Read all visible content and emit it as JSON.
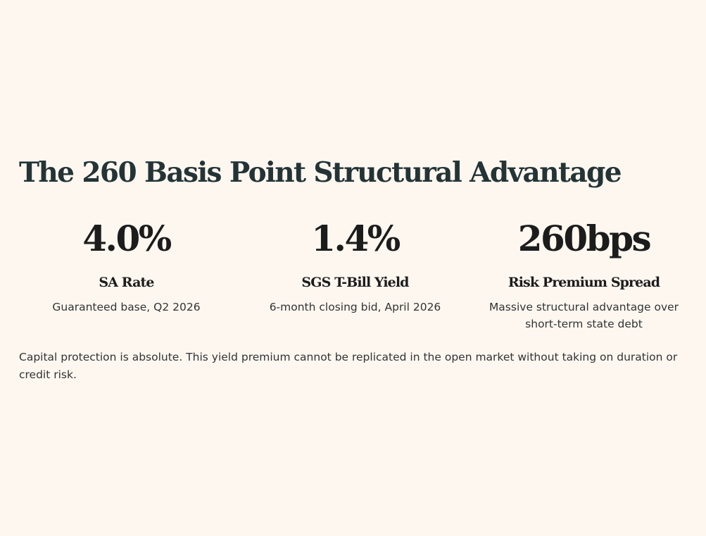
{
  "headline": "The 260 Basis Point Structural Advantage",
  "stats": [
    {
      "value": "4.0%",
      "label": "SA Rate",
      "description": "Guaranteed base, Q2 2026"
    },
    {
      "value": "1.4%",
      "label": "SGS T-Bill Yield",
      "description": "6-month closing bid, April 2026"
    },
    {
      "value": "260bps",
      "label": "Risk Premium Spread",
      "description": "Massive structural advantage over short-term state debt"
    }
  ],
  "footnote": "Capital protection is absolute. This yield premium cannot be replicated in the open market without taking on duration or credit risk.",
  "colors": {
    "background": "#fdf7f0",
    "headline": "#243436",
    "value": "#1c1c1c",
    "body_text": "#333333"
  }
}
